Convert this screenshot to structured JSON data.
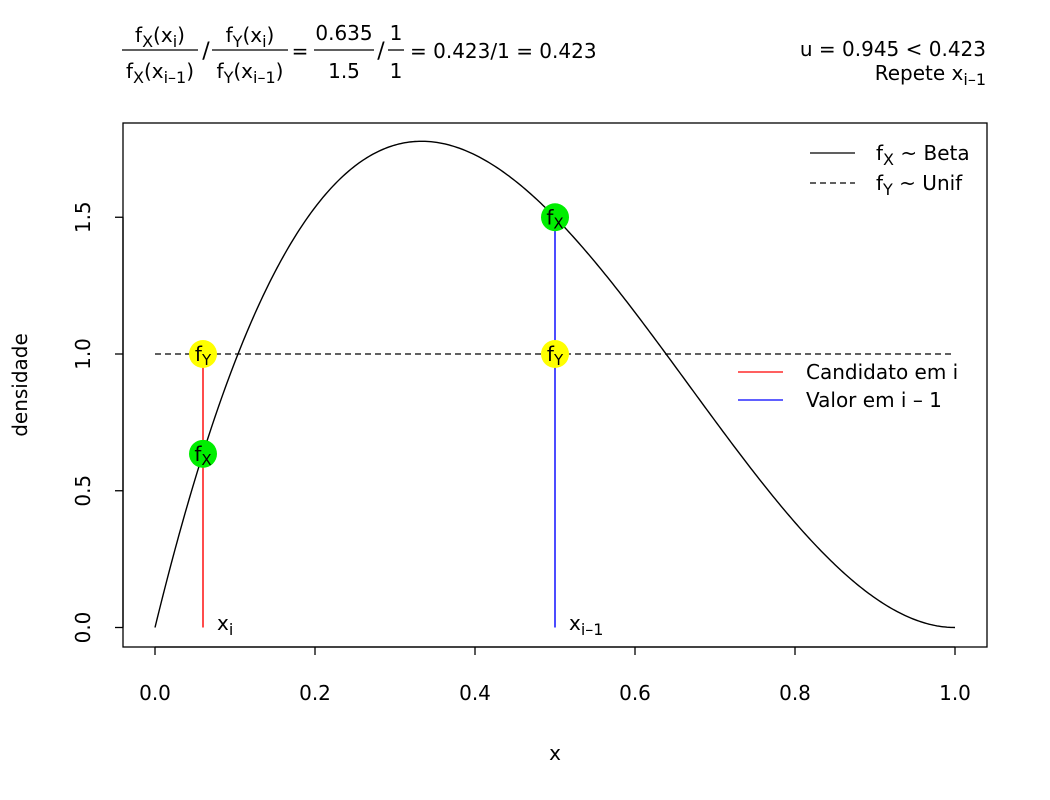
{
  "chart_data": {
    "type": "line",
    "xlabel": "x",
    "ylabel": "densidade",
    "xlim": [
      0,
      1
    ],
    "ylim": [
      0,
      1.7777
    ],
    "x_ticks": [
      "0.0",
      "0.2",
      "0.4",
      "0.6",
      "0.8",
      "1.0"
    ],
    "y_ticks": [
      "0.0",
      "0.5",
      "1.0",
      "1.5"
    ],
    "series": [
      {
        "name": "f_X ~ Beta",
        "distribution": "Beta",
        "alpha": 2,
        "beta": 3,
        "color": "#000000",
        "linestyle": "solid"
      },
      {
        "name": "f_Y ~ Unif",
        "distribution": "Uniform",
        "value": 1.0,
        "color": "#000000",
        "linestyle": "dashed"
      }
    ],
    "segments": [
      {
        "name": "Candidato em i",
        "x": 0.06,
        "y_top": 1.0,
        "color": "#ff0000",
        "label": "xi"
      },
      {
        "name": "Valor em i – 1",
        "x": 0.5,
        "y_top": 1.5,
        "color": "#0000ff",
        "label": "xi–1"
      }
    ],
    "points": [
      {
        "x": 0.06,
        "y": 1.0,
        "label": "fY",
        "color": "#ffff00"
      },
      {
        "x": 0.06,
        "y": 0.635,
        "label": "fX",
        "color": "#00ee00"
      },
      {
        "x": 0.5,
        "y": 1.0,
        "label": "fY",
        "color": "#ffff00"
      },
      {
        "x": 0.5,
        "y": 1.5,
        "label": "fX",
        "color": "#00ee00"
      }
    ],
    "legend_top_right": [
      {
        "label": "fX ~ Beta",
        "linestyle": "solid",
        "color": "#000000"
      },
      {
        "label": "fY ~ Unif",
        "linestyle": "dashed",
        "color": "#000000"
      }
    ],
    "legend_right": [
      {
        "label": "Candidato em i",
        "color": "#ff0000"
      },
      {
        "label": "Valor em i – 1",
        "color": "#0000ff"
      }
    ],
    "formula": {
      "lhs_num_1": "fX(xi)",
      "lhs_den_1": "fX(xi–1)",
      "lhs_num_2": "fY(xi)",
      "lhs_den_2": "fY(xi–1)",
      "num_1": "0.635",
      "den_1": "1.5",
      "num_2": "1",
      "den_2": "1",
      "result": "= 0.423/1 = 0.423"
    },
    "decision": {
      "line1": "u =  0.945 < 0.423",
      "line2": "Repete xi–1"
    }
  }
}
